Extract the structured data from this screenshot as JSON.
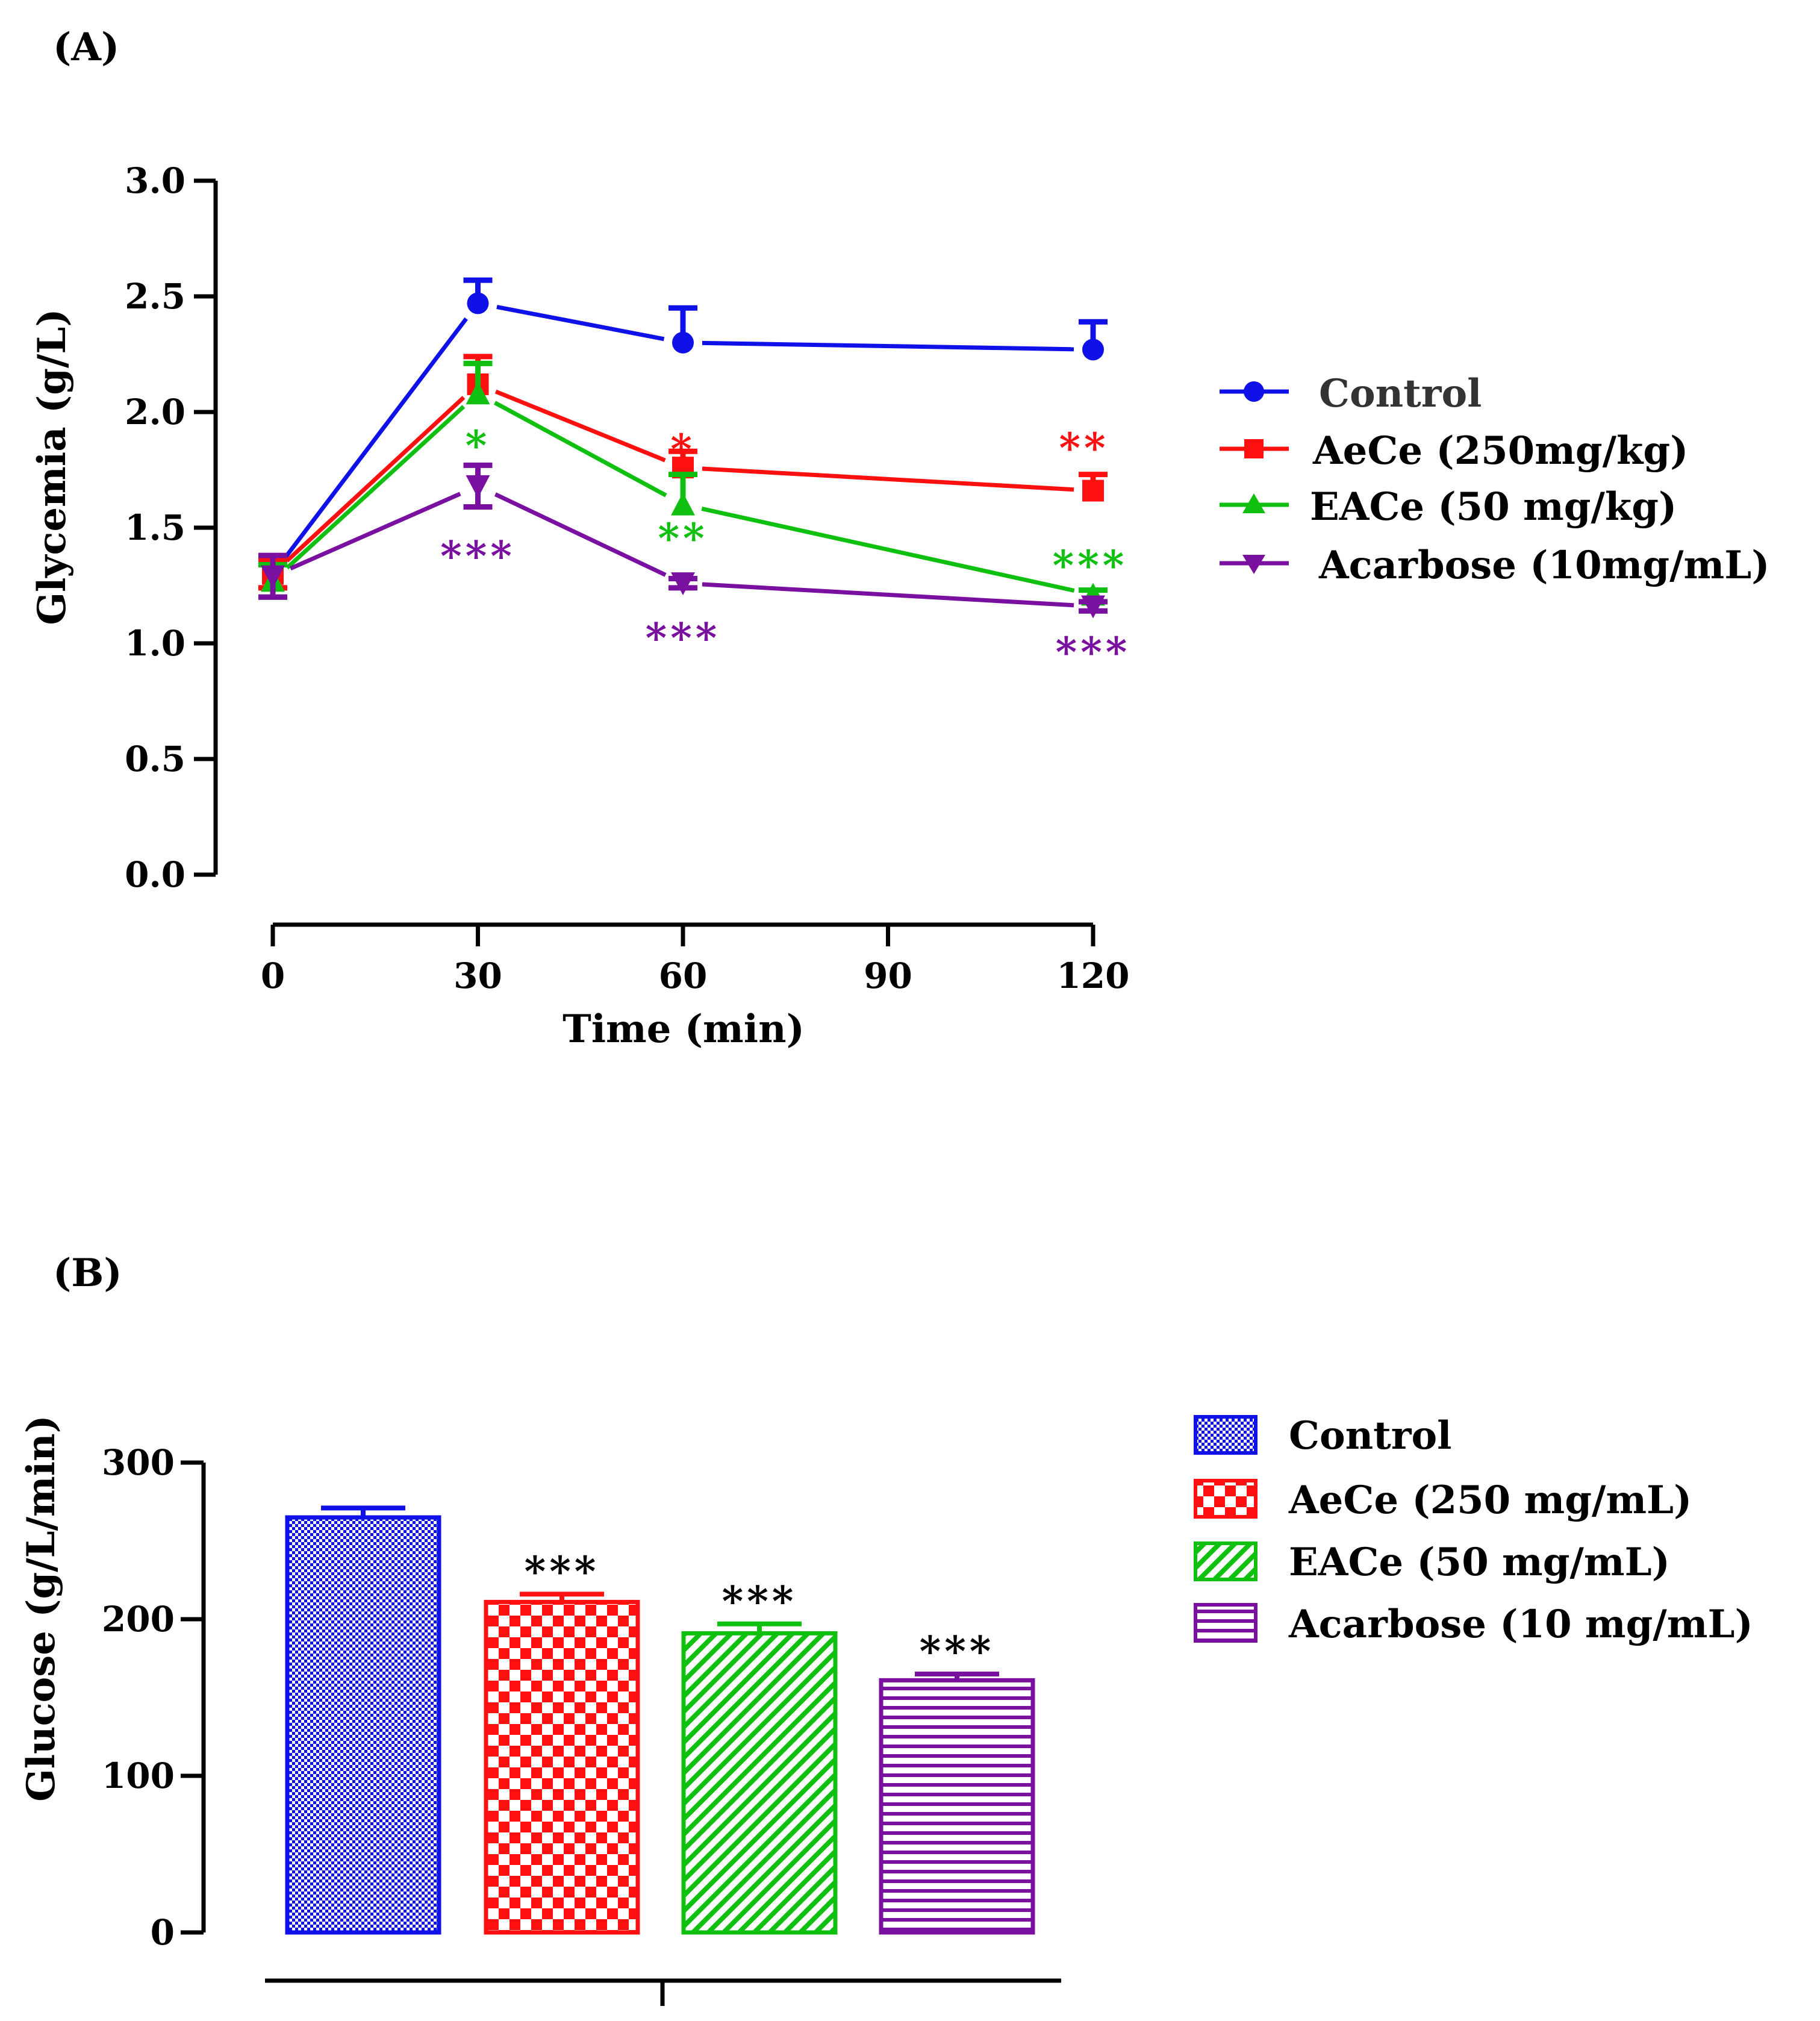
{
  "colors": {
    "control": "#1010e8",
    "aece": "#ff1010",
    "eace": "#10c010",
    "acarbose": "#7a10a0",
    "axis": "#000000",
    "legend_control_text": "#333333"
  },
  "chart_data": [
    {
      "id": "A",
      "panel_label": "(A)",
      "type": "line",
      "xlabel": "Time (min)",
      "ylabel": "Glycemia (g/L)",
      "ylim": [
        0,
        3.0
      ],
      "xlim": [
        0,
        120
      ],
      "xticks": [
        {
          "value": 0,
          "label": "0"
        },
        {
          "value": 30,
          "label": "30"
        },
        {
          "value": 60,
          "label": "60"
        },
        {
          "value": 90,
          "label": "90"
        },
        {
          "value": 120,
          "label": "120"
        }
      ],
      "yticks": [
        {
          "value": 0.0,
          "label": "0.0"
        },
        {
          "value": 0.5,
          "label": "0.5"
        },
        {
          "value": 1.0,
          "label": "1.0"
        },
        {
          "value": 1.5,
          "label": "1.5"
        },
        {
          "value": 2.0,
          "label": "2.0"
        },
        {
          "value": 2.5,
          "label": "2.5"
        },
        {
          "value": 3.0,
          "label": "3.0"
        }
      ],
      "series": [
        {
          "key": "control",
          "name": "Control",
          "color": "#1010e8",
          "marker": "circle",
          "x": [
            0,
            30,
            60,
            120
          ],
          "y": [
            1.3,
            2.47,
            2.3,
            2.27
          ],
          "err": [
            0.06,
            0.1,
            0.15,
            0.12
          ],
          "sig": [
            "",
            "",
            "",
            ""
          ]
        },
        {
          "key": "aece",
          "name": "AeCe (250mg/kg)",
          "color": "#ff1010",
          "marker": "square",
          "x": [
            0,
            30,
            60,
            120
          ],
          "y": [
            1.3,
            2.12,
            1.76,
            1.66
          ],
          "err": [
            0.06,
            0.12,
            0.07,
            0.07
          ],
          "sig": [
            "",
            "",
            "*",
            "**"
          ]
        },
        {
          "key": "eace",
          "name": "EACe (50 mg/kg)",
          "color": "#10c010",
          "marker": "triangle-up",
          "x": [
            0,
            30,
            60,
            120
          ],
          "y": [
            1.27,
            2.08,
            1.6,
            1.21
          ],
          "err": [
            0.07,
            0.13,
            0.13,
            0.02
          ],
          "sig": [
            "",
            "*",
            "**",
            "***"
          ]
        },
        {
          "key": "acarbose",
          "name": "Acarbose (10mg/mL)",
          "color": "#7a10a0",
          "marker": "triangle-down",
          "x": [
            0,
            30,
            60,
            120
          ],
          "y": [
            1.29,
            1.68,
            1.26,
            1.16
          ],
          "err": [
            0.09,
            0.09,
            0.02,
            0.02
          ],
          "sig": [
            "",
            "***",
            "***",
            "***"
          ]
        }
      ]
    },
    {
      "id": "B",
      "panel_label": "(B)",
      "type": "bar",
      "xlabel": "",
      "ylabel": "Glucose (g/L/min)",
      "ylim": [
        0,
        300
      ],
      "yticks": [
        {
          "value": 0,
          "label": "0"
        },
        {
          "value": 100,
          "label": "100"
        },
        {
          "value": 200,
          "label": "200"
        },
        {
          "value": 300,
          "label": "300"
        }
      ],
      "series": [
        {
          "key": "control",
          "name": "Control",
          "color": "#1010e8",
          "pattern": "fine-grid",
          "value": 265,
          "err": 6,
          "sig": ""
        },
        {
          "key": "aece",
          "name": "AeCe (250 mg/mL)",
          "color": "#ff1010",
          "pattern": "checker",
          "value": 211,
          "err": 5,
          "sig": "***"
        },
        {
          "key": "eace",
          "name": "EACe (50 mg/mL)",
          "color": "#10c010",
          "pattern": "diagonal",
          "value": 191,
          "err": 6,
          "sig": "***"
        },
        {
          "key": "acarbose",
          "name": "Acarbose (10 mg/mL)",
          "color": "#7a10a0",
          "pattern": "horizontal",
          "value": 161,
          "err": 4,
          "sig": "***"
        }
      ]
    }
  ]
}
